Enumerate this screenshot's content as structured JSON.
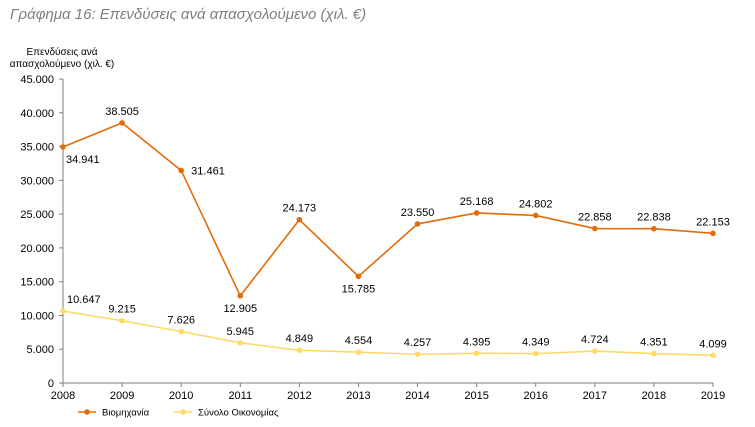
{
  "chart_data": {
    "type": "line",
    "title": "Γράφημα 16: Επενδύσεις ανά απασχολούμενο (χιλ. €)",
    "ylabel": "Επενδύσεις ανά απασχολούμενο (χιλ. €)",
    "xlabel": "",
    "x": [
      "2008",
      "2009",
      "2010",
      "2011",
      "2012",
      "2013",
      "2014",
      "2015",
      "2016",
      "2017",
      "2018",
      "2019"
    ],
    "ylim": [
      0,
      45000
    ],
    "yticks": [
      0,
      5000,
      10000,
      15000,
      20000,
      25000,
      30000,
      35000,
      40000,
      45000
    ],
    "ytick_labels": [
      "0",
      "5.000",
      "10.000",
      "15.000",
      "20.000",
      "25.000",
      "30.000",
      "35.000",
      "40.000",
      "45.000"
    ],
    "grid": false,
    "legend_position": "bottom-left",
    "series": [
      {
        "name": "Βιομηχανία",
        "color": "#e36c0a",
        "values": [
          34941,
          38505,
          31461,
          12905,
          24173,
          15785,
          23550,
          25168,
          24802,
          22858,
          22838,
          22153
        ],
        "labels": [
          "34.941",
          "38.505",
          "31.461",
          "12.905",
          "24.173",
          "15.785",
          "23.550",
          "25.168",
          "24.802",
          "22.858",
          "22.838",
          "22.153"
        ]
      },
      {
        "name": "Σύνολο Οικονομίας",
        "color": "#ffd966",
        "values": [
          10647,
          9215,
          7626,
          5945,
          4849,
          4554,
          4257,
          4395,
          4349,
          4724,
          4351,
          4099
        ],
        "labels": [
          "10.647",
          "9.215",
          "7.626",
          "5.945",
          "4.849",
          "4.554",
          "4.257",
          "4.395",
          "4.349",
          "4.724",
          "4.351",
          "4.099"
        ]
      }
    ]
  }
}
